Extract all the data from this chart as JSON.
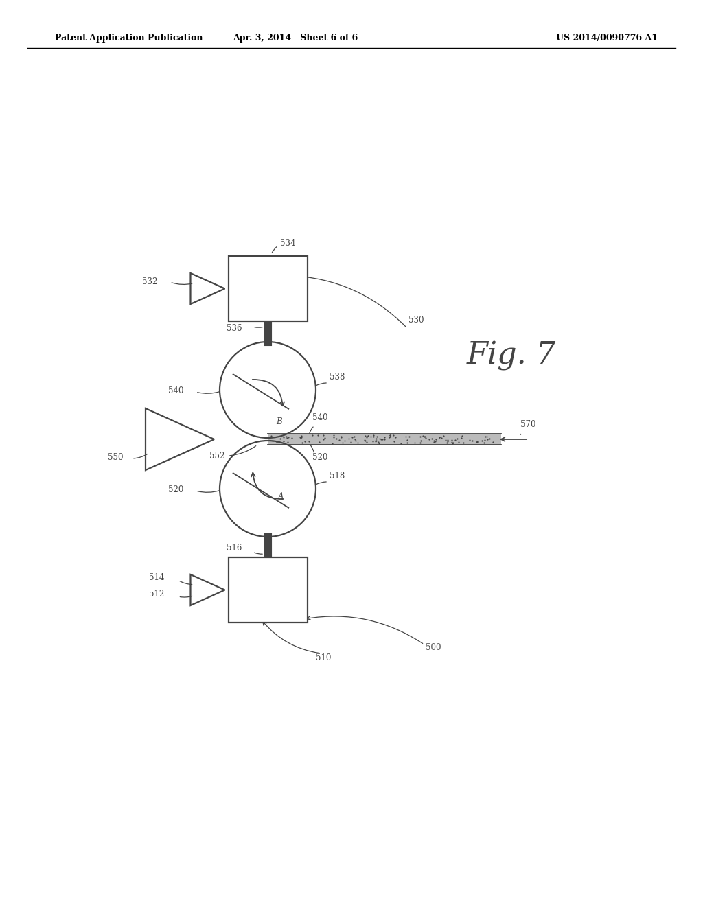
{
  "bg_color": "#ffffff",
  "header_left": "Patent Application Publication",
  "header_center": "Apr. 3, 2014   Sheet 6 of 6",
  "header_right": "US 2014/0090776 A1",
  "fig_label": "Fig. 7",
  "gray": "#444444",
  "line_color": "#555555"
}
